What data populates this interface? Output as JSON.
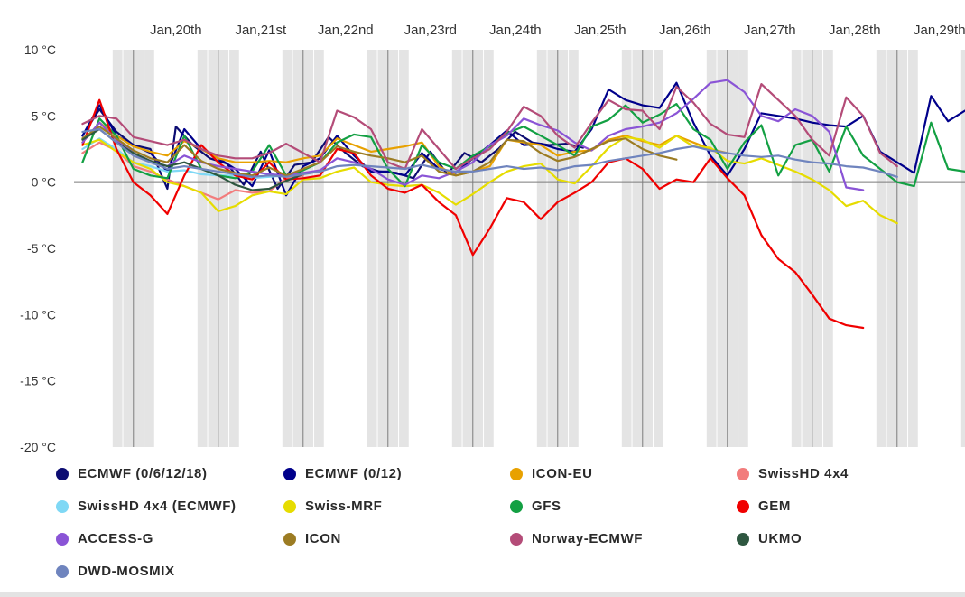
{
  "chart_data": {
    "type": "line",
    "title": "",
    "xlabel": "",
    "ylabel": "",
    "x_tick_labels": [
      "Jan,20th",
      "Jan,21st",
      "Jan,22nd",
      "Jan,23rd",
      "Jan,24th",
      "Jan,25th",
      "Jan,26th",
      "Jan,27th",
      "Jan,28th",
      "Jan,29th"
    ],
    "y_tick_labels": [
      "10 °C",
      "5 °C",
      "0 °C",
      "-5 °C",
      "-10 °C",
      "-15 °C",
      "-20 °C"
    ],
    "ylim": [
      -20,
      10
    ],
    "x_units": "days (0 = Jan 19th 00:00)",
    "xlim": [
      0.3,
      10.8
    ],
    "grid": "vertical bands (night shaded)",
    "legend_position": "bottom",
    "series": [
      {
        "name": "ECMWF (0/6/12/18)",
        "color": "#0c0c72",
        "x": [
          0.4,
          0.6,
          0.8,
          1.0,
          1.2,
          1.4,
          1.5,
          1.7,
          1.9,
          2.1,
          2.3,
          2.5,
          2.7,
          2.9,
          3.1,
          3.3,
          3.5,
          3.7,
          3.9,
          4.1,
          4.3,
          4.5,
          4.7,
          4.9,
          5.1,
          5.3,
          5.5,
          5.7,
          5.9,
          6.1,
          6.3
        ],
        "y": [
          3.5,
          5.5,
          3.8,
          2.8,
          2.5,
          -0.5,
          4.2,
          2.8,
          1.8,
          1.4,
          -0.2,
          2.3,
          -0.5,
          1.3,
          1.5,
          3.4,
          2.2,
          1.2,
          0.8,
          0.7,
          0.3,
          2.3,
          0.6,
          2.2,
          1.5,
          2.5,
          3.8,
          3.0,
          2.8,
          2.9,
          2.6
        ]
      },
      {
        "name": "ECMWF (0/12)",
        "color": "#00008b",
        "x": [
          0.4,
          0.6,
          0.8,
          1.0,
          1.2,
          1.4,
          1.6,
          1.8,
          2.0,
          2.2,
          2.4,
          2.6,
          2.8,
          3.0,
          3.2,
          3.4,
          3.6,
          3.8,
          4.0,
          4.2,
          4.4,
          4.6,
          4.8,
          5.0,
          5.2,
          5.4,
          5.6,
          5.8,
          6.0,
          6.2,
          6.4,
          6.6,
          6.8,
          7.0,
          7.2,
          7.4,
          7.6,
          7.8,
          8.0,
          8.2,
          8.4,
          8.6,
          8.8,
          9.0,
          9.2,
          9.4,
          9.6,
          9.8,
          10.0,
          10.2,
          10.4,
          10.6,
          10.8
        ],
        "y": [
          3.5,
          5.8,
          3.5,
          2.8,
          2.2,
          0.8,
          4.0,
          2.5,
          1.8,
          1.0,
          -0.3,
          2.4,
          -1.0,
          1.2,
          1.8,
          3.5,
          2.0,
          0.8,
          0.8,
          0.5,
          2.2,
          1.0,
          0.7,
          1.8,
          2.8,
          3.9,
          2.8,
          2.9,
          2.5,
          2.3,
          4.0,
          7.0,
          6.2,
          5.8,
          5.6,
          7.5,
          4.5,
          2.0,
          0.5,
          2.5,
          5.2,
          5.0,
          4.8,
          4.5,
          4.3,
          4.2,
          5.0,
          2.3,
          1.5,
          0.7,
          6.5,
          4.6,
          5.4
        ]
      },
      {
        "name": "ICON-EU",
        "color": "#e8a100",
        "x": [
          0.4,
          0.6,
          0.8,
          1.0,
          1.2,
          1.4,
          1.6,
          1.8,
          2.0,
          2.2,
          2.4,
          2.6,
          2.8,
          3.0,
          3.2,
          3.4,
          3.6,
          3.8,
          4.0,
          4.2,
          4.4,
          4.6,
          4.8,
          5.0,
          5.2,
          5.4,
          5.6,
          5.8,
          6.0,
          6.2,
          6.4,
          6.6,
          6.8,
          7.0,
          7.2,
          7.4,
          7.6,
          7.8,
          8.0
        ],
        "y": [
          3.0,
          4.5,
          3.5,
          2.7,
          2.3,
          2.0,
          3.1,
          2.5,
          1.8,
          1.5,
          1.5,
          1.6,
          1.5,
          1.8,
          2.0,
          3.3,
          2.8,
          2.3,
          2.5,
          2.7,
          3.0,
          1.2,
          0.5,
          0.8,
          1.2,
          3.2,
          3.0,
          2.8,
          2.0,
          2.3,
          2.4,
          3.2,
          3.5,
          3.1,
          2.8,
          3.5,
          3.0,
          2.5,
          2.2
        ]
      },
      {
        "name": "SwissHD 4x4",
        "color": "#f27c7c",
        "x": [
          0.4,
          0.6,
          0.8,
          1.0,
          1.2,
          1.4,
          1.6,
          1.8,
          2.0,
          2.2,
          2.4,
          2.6,
          2.8,
          3.0
        ],
        "y": [
          2.2,
          3.0,
          2.4,
          1.2,
          0.8,
          0.2,
          -0.3,
          -0.8,
          -1.3,
          -0.6,
          -0.8,
          -0.7,
          0.3,
          0.5
        ]
      },
      {
        "name": "SwissHD 4x4 (ECMWF)",
        "color": "#7fd8f5",
        "x": [
          0.4,
          0.6,
          0.8,
          1.0,
          1.2,
          1.4,
          1.6,
          1.8,
          2.0,
          2.2,
          2.4,
          2.6,
          2.8,
          3.0
        ],
        "y": [
          2.5,
          3.3,
          2.5,
          1.5,
          1.2,
          0.8,
          0.9,
          0.6,
          0.5,
          0.5,
          0.3,
          0.4,
          0.5,
          0.6
        ]
      },
      {
        "name": "Swiss-MRF",
        "color": "#e6dc00",
        "x": [
          0.4,
          0.6,
          0.8,
          1.0,
          1.2,
          1.4,
          1.6,
          1.8,
          2.0,
          2.2,
          2.4,
          2.6,
          2.8,
          3.0,
          3.2,
          3.4,
          3.6,
          3.8,
          4.0,
          4.2,
          4.4,
          4.6,
          4.8,
          5.0,
          5.2,
          5.4,
          5.6,
          5.8,
          6.0,
          6.2,
          6.4,
          6.6,
          6.8,
          7.0,
          7.2,
          7.4,
          7.6,
          7.8,
          8.0,
          8.2,
          8.4,
          8.6,
          8.8,
          9.0,
          9.2,
          9.4,
          9.6,
          9.8,
          10.0
        ],
        "y": [
          2.8,
          3.2,
          2.3,
          1.5,
          1.0,
          0.0,
          -0.3,
          -0.8,
          -2.2,
          -1.8,
          -1.0,
          -0.7,
          -0.9,
          0.2,
          0.3,
          0.8,
          1.1,
          0.0,
          -0.2,
          -0.3,
          -0.2,
          -0.8,
          -1.7,
          -0.9,
          0.0,
          0.8,
          1.2,
          1.4,
          0.2,
          -0.1,
          1.2,
          2.6,
          3.4,
          3.2,
          2.6,
          3.5,
          2.7,
          2.6,
          1.6,
          1.4,
          1.8,
          1.3,
          0.8,
          0.2,
          -0.6,
          -1.8,
          -1.4,
          -2.5,
          -3.1
        ]
      },
      {
        "name": "GFS",
        "color": "#13a043",
        "x": [
          0.4,
          0.6,
          0.8,
          1.0,
          1.2,
          1.4,
          1.6,
          1.8,
          2.0,
          2.2,
          2.4,
          2.6,
          2.8,
          3.0,
          3.2,
          3.4,
          3.6,
          3.8,
          4.0,
          4.2,
          4.4,
          4.6,
          4.8,
          5.0,
          5.2,
          5.4,
          5.6,
          5.8,
          6.0,
          6.2,
          6.4,
          6.6,
          6.8,
          7.0,
          7.2,
          7.4,
          7.6,
          7.8,
          8.0,
          8.2,
          8.4,
          8.6,
          8.8,
          9.0,
          9.2,
          9.4,
          9.6,
          9.8,
          10.0,
          10.2,
          10.4,
          10.6,
          10.8
        ],
        "y": [
          1.5,
          4.8,
          3.5,
          1.0,
          0.5,
          0.3,
          3.5,
          1.0,
          0.5,
          0.3,
          0.8,
          2.8,
          0.5,
          0.9,
          1.5,
          3.0,
          3.6,
          3.4,
          1.0,
          -0.3,
          2.8,
          1.5,
          1.0,
          2.0,
          2.7,
          3.7,
          4.2,
          3.5,
          2.8,
          2.0,
          4.2,
          4.7,
          5.8,
          4.5,
          5.1,
          5.9,
          4.0,
          3.2,
          1.0,
          3.0,
          4.3,
          0.5,
          2.8,
          3.2,
          0.8,
          4.2,
          2.0,
          1.0,
          0.0,
          -0.3,
          4.5,
          1.0,
          0.8
        ]
      },
      {
        "name": "GEM",
        "color": "#f00000",
        "x": [
          0.4,
          0.6,
          0.8,
          1.0,
          1.2,
          1.4,
          1.6,
          1.8,
          2.0,
          2.2,
          2.4,
          2.6,
          2.8,
          3.0,
          3.2,
          3.4,
          3.6,
          3.8,
          4.0,
          4.2,
          4.4,
          4.6,
          4.8,
          5.0,
          5.2,
          5.4,
          5.6,
          5.8,
          6.0,
          6.2,
          6.4,
          6.6,
          6.8,
          7.0,
          7.2,
          7.4,
          7.6,
          7.8,
          8.0,
          8.2,
          8.4,
          8.6,
          8.8,
          9.0,
          9.2,
          9.4,
          9.6
        ],
        "y": [
          2.8,
          6.2,
          2.5,
          0.0,
          -1.0,
          -2.4,
          0.5,
          2.8,
          1.5,
          0.5,
          0.2,
          1.5,
          0.2,
          0.3,
          0.5,
          2.5,
          2.2,
          0.5,
          -0.5,
          -0.8,
          -0.2,
          -1.5,
          -2.5,
          -5.5,
          -3.5,
          -1.2,
          -1.5,
          -2.8,
          -1.5,
          -0.8,
          0.0,
          1.5,
          1.8,
          1.0,
          -0.5,
          0.2,
          0.0,
          1.8,
          0.3,
          -1.0,
          -4.0,
          -5.8,
          -6.8,
          -8.5,
          -10.3,
          -10.8,
          -11.0
        ]
      },
      {
        "name": "ACCESS-G",
        "color": "#8a54d6",
        "x": [
          0.4,
          0.6,
          0.8,
          1.0,
          1.2,
          1.4,
          1.6,
          1.8,
          2.0,
          2.2,
          2.4,
          2.6,
          2.8,
          3.0,
          3.2,
          3.4,
          3.6,
          3.8,
          4.0,
          4.2,
          4.4,
          4.6,
          4.8,
          5.0,
          5.2,
          5.4,
          5.6,
          5.8,
          6.0,
          6.2,
          6.4,
          6.6,
          6.8,
          7.0,
          7.2,
          7.4,
          7.6,
          7.8,
          8.0,
          8.2,
          8.4,
          8.6,
          8.8,
          9.0,
          9.2,
          9.4,
          9.6
        ],
        "y": [
          3.0,
          4.5,
          3.2,
          2.2,
          1.6,
          1.2,
          2.0,
          1.5,
          1.2,
          1.0,
          0.8,
          0.6,
          0.5,
          0.7,
          0.9,
          1.8,
          1.5,
          1.0,
          0.2,
          -0.2,
          0.5,
          0.3,
          0.8,
          1.5,
          2.8,
          3.5,
          4.8,
          4.3,
          3.9,
          3.0,
          2.4,
          3.5,
          4.0,
          4.2,
          4.5,
          5.2,
          6.3,
          7.5,
          7.7,
          6.8,
          5.0,
          4.6,
          5.5,
          5.0,
          3.8,
          -0.4,
          -0.6
        ]
      },
      {
        "name": "ICON",
        "color": "#9c7c23",
        "x": [
          0.4,
          0.6,
          0.8,
          1.0,
          1.2,
          1.4,
          1.6,
          1.8,
          2.0,
          2.2,
          2.4,
          2.6,
          2.8,
          3.0,
          3.2,
          3.4,
          3.6,
          3.8,
          4.0,
          4.2,
          4.4,
          4.6,
          4.8,
          5.0,
          5.2,
          5.4,
          5.6,
          5.8,
          6.0,
          6.2,
          6.4,
          6.6,
          6.8,
          7.0,
          7.2,
          7.4
        ],
        "y": [
          3.3,
          4.2,
          3.3,
          2.4,
          1.8,
          1.5,
          2.8,
          1.6,
          1.0,
          0.7,
          0.5,
          1.1,
          0.5,
          1.0,
          1.5,
          2.7,
          2.3,
          2.0,
          1.8,
          1.5,
          2.0,
          0.8,
          0.5,
          0.8,
          1.5,
          3.2,
          3.1,
          2.2,
          1.6,
          1.9,
          2.5,
          3.1,
          3.3,
          2.5,
          2.0,
          1.7
        ]
      },
      {
        "name": "Norway-ECMWF",
        "color": "#b44c78",
        "x": [
          0.4,
          0.6,
          0.8,
          1.0,
          1.2,
          1.4,
          1.6,
          1.8,
          2.0,
          2.2,
          2.4,
          2.6,
          2.8,
          3.0,
          3.2,
          3.4,
          3.6,
          3.8,
          4.0,
          4.2,
          4.4,
          4.6,
          4.8,
          5.0,
          5.2,
          5.4,
          5.6,
          5.8,
          6.0,
          6.2,
          6.4,
          6.6,
          6.8,
          7.0,
          7.2,
          7.4,
          7.6,
          7.8,
          8.0,
          8.2,
          8.4,
          8.6,
          8.8,
          9.0,
          9.2,
          9.4,
          9.6,
          9.8,
          10.0
        ],
        "y": [
          4.4,
          5.0,
          4.8,
          3.4,
          3.1,
          2.8,
          3.2,
          2.5,
          2.0,
          1.8,
          1.8,
          2.2,
          2.9,
          2.2,
          1.5,
          5.4,
          4.9,
          4.0,
          1.5,
          1.0,
          4.0,
          2.5,
          1.0,
          1.8,
          2.5,
          3.8,
          5.7,
          5.0,
          3.5,
          2.6,
          4.5,
          6.2,
          5.5,
          5.4,
          4.0,
          7.2,
          6.0,
          4.4,
          3.6,
          3.4,
          7.4,
          6.2,
          5.0,
          3.2,
          2.0,
          6.4,
          5.0,
          2.2,
          1.2
        ]
      },
      {
        "name": "UKMO",
        "color": "#2e5740",
        "x": [
          0.4,
          0.6,
          0.8,
          1.0,
          1.2,
          1.4,
          1.6,
          1.8,
          2.0,
          2.2,
          2.4,
          2.6,
          2.8,
          3.0
        ],
        "y": [
          3.2,
          4.0,
          3.0,
          2.2,
          1.6,
          1.2,
          1.5,
          1.0,
          0.5,
          -0.2,
          -0.6,
          -0.5,
          0.1,
          0.6
        ]
      },
      {
        "name": "DWD-MOSMIX",
        "color": "#6f84be",
        "x": [
          0.4,
          0.6,
          0.8,
          1.0,
          1.2,
          1.4,
          1.6,
          1.8,
          2.0,
          2.2,
          2.4,
          2.6,
          2.8,
          3.0,
          3.2,
          3.4,
          3.6,
          3.8,
          4.0,
          4.2,
          4.4,
          4.6,
          4.8,
          5.0,
          5.2,
          5.4,
          5.6,
          5.8,
          6.0,
          6.2,
          6.4,
          6.6,
          6.8,
          7.0,
          7.2,
          7.4,
          7.6,
          7.8,
          8.0,
          8.2,
          8.4,
          8.6,
          8.8,
          9.0,
          9.2,
          9.4,
          9.6,
          9.8,
          10.0
        ],
        "y": [
          3.8,
          4.0,
          3.0,
          2.0,
          1.5,
          1.0,
          1.2,
          1.0,
          0.8,
          0.6,
          0.4,
          0.5,
          0.4,
          0.6,
          0.8,
          1.2,
          1.3,
          1.2,
          1.1,
          1.0,
          1.3,
          1.0,
          0.8,
          0.8,
          1.0,
          1.2,
          1.0,
          1.1,
          0.9,
          1.2,
          1.3,
          1.6,
          1.8,
          2.0,
          2.2,
          2.5,
          2.7,
          2.4,
          2.2,
          2.0,
          1.9,
          2.0,
          1.7,
          1.5,
          1.4,
          1.2,
          1.1,
          0.8,
          0.4
        ]
      }
    ]
  }
}
